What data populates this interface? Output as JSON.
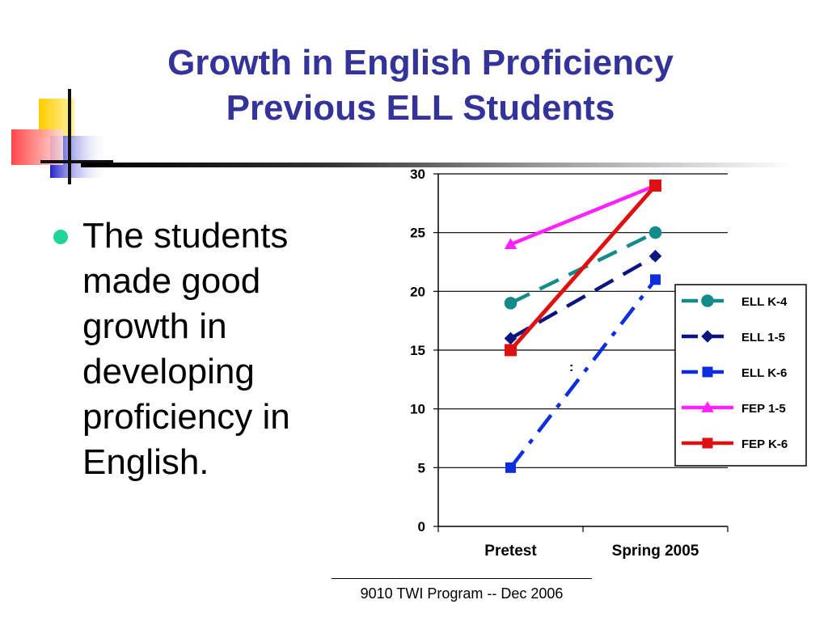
{
  "title": {
    "line1": "Growth in English Proficiency",
    "line2": "Previous ELL Students"
  },
  "bullet": {
    "text": "The students made good growth in developing proficiency in English."
  },
  "footer": {
    "text": "9010 TWI Program -- Dec 2006"
  },
  "colors": {
    "title": "#333399",
    "bullet": "#22d39a"
  },
  "chart_data": {
    "type": "line",
    "categories": [
      "Pretest",
      "Spring 2005"
    ],
    "ylim": [
      0,
      30
    ],
    "yticks": [
      "0",
      "5",
      "10",
      "15",
      "20",
      "25",
      "30"
    ],
    "grid": true,
    "legend_position": "right",
    "annotation": ":",
    "series": [
      {
        "name": "ELL K-4",
        "values": [
          19,
          25
        ],
        "color": "#138b8b",
        "marker": "circle",
        "dash": "dashed"
      },
      {
        "name": "ELL 1-5",
        "values": [
          16,
          23
        ],
        "color": "#0a1580",
        "marker": "diamond",
        "dash": "dashed"
      },
      {
        "name": "ELL K-6",
        "values": [
          5,
          21
        ],
        "color": "#0b2fdc",
        "marker": "square",
        "dash": "dashdot"
      },
      {
        "name": "FEP 1-5",
        "values": [
          24,
          29
        ],
        "color": "#ff22ff",
        "marker": "triangle",
        "dash": "solid"
      },
      {
        "name": "FEP K-6",
        "values": [
          15,
          29
        ],
        "color": "#dd1111",
        "marker": "square",
        "dash": "solid"
      }
    ]
  }
}
